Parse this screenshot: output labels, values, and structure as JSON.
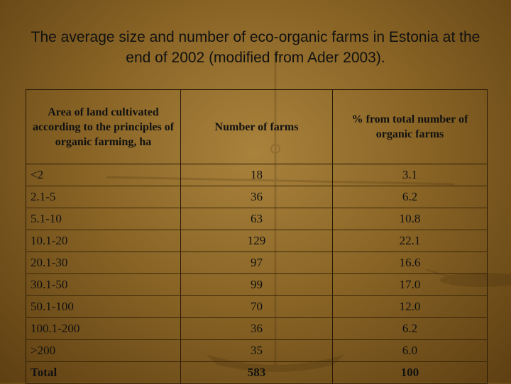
{
  "title": "The average size and number of eco-organic farms in Estonia at the end of 2002 (modified from Ader 2003).",
  "table": {
    "headers": [
      "Area of land cultivated according to the principles of organic farming, ha",
      "Number of farms",
      "% from total number of organic farms"
    ],
    "rows": [
      [
        "<2",
        "18",
        "3.1"
      ],
      [
        "2.1-5",
        "36",
        "6.2"
      ],
      [
        "5.1-10",
        "63",
        "10.8"
      ],
      [
        "10.1-20",
        "129",
        "22.1"
      ],
      [
        "20.1-30",
        "97",
        "16.6"
      ],
      [
        "30.1-50",
        "99",
        "17.0"
      ],
      [
        "50.1-100",
        "70",
        "12.0"
      ],
      [
        "100.1-200",
        "36",
        "6.2"
      ],
      [
        ">200",
        "35",
        "6.0"
      ]
    ],
    "total": [
      "Total",
      "583",
      "100"
    ]
  }
}
